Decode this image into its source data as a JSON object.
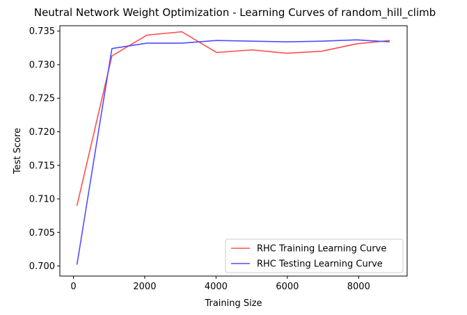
{
  "chart_data": {
    "type": "line",
    "title": "Neutral Network Weight Optimization - Learning Curves of random_hill_climb",
    "xlabel": "Training Size",
    "ylabel": "Test Score",
    "xlim": [
      -380,
      9360
    ],
    "ylim": [
      0.6985,
      0.7358
    ],
    "xticks": [
      0,
      2000,
      4000,
      6000,
      8000
    ],
    "yticks": [
      0.7,
      0.705,
      0.71,
      0.715,
      0.72,
      0.725,
      0.73,
      0.735
    ],
    "ytick_labels": [
      "0.700",
      "0.705",
      "0.710",
      "0.715",
      "0.720",
      "0.725",
      "0.730",
      "0.735"
    ],
    "grid": false,
    "legend_position": "lower right",
    "series": [
      {
        "name": "RHC Training Learning Curve",
        "color": "#ff4d4d",
        "x": [
          100,
          1080,
          2060,
          3040,
          4020,
          5000,
          5980,
          6960,
          7940,
          8870
        ],
        "y": [
          0.709,
          0.7313,
          0.7344,
          0.7349,
          0.7318,
          0.7322,
          0.7317,
          0.732,
          0.7331,
          0.7336
        ]
      },
      {
        "name": "RHC Testing Learning Curve",
        "color": "#4d4dff",
        "x": [
          100,
          1080,
          2060,
          3040,
          4020,
          5000,
          5980,
          6960,
          7940,
          8870
        ],
        "y": [
          0.7002,
          0.7324,
          0.7332,
          0.7332,
          0.7336,
          0.7335,
          0.7334,
          0.7335,
          0.7337,
          0.7334
        ]
      }
    ]
  }
}
